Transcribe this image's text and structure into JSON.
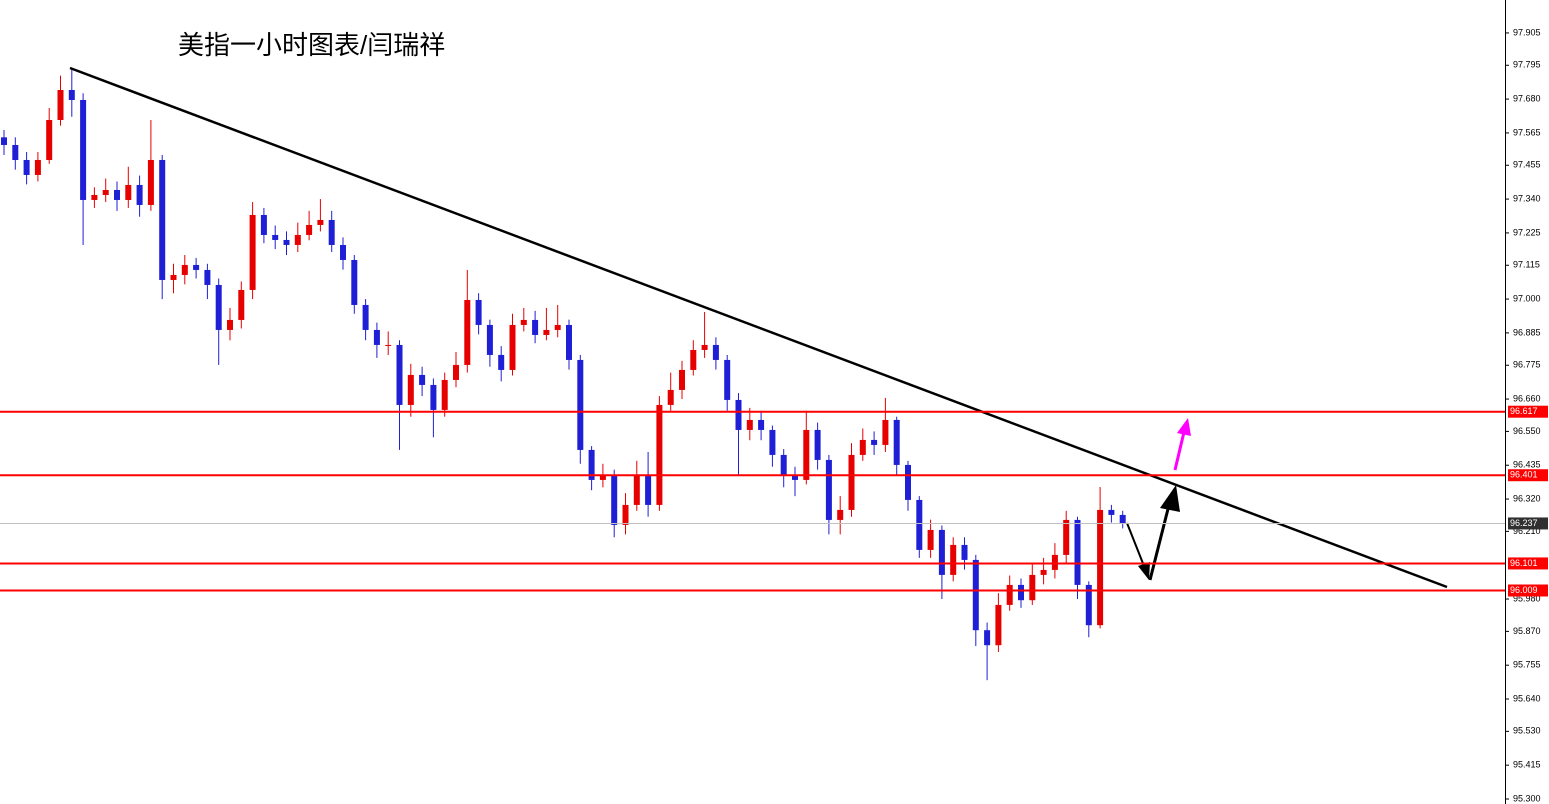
{
  "chart_data": {
    "type": "candlestick",
    "title": "美指一小时图表/闫瑞祥",
    "open": [
      97.55,
      97.524,
      97.473,
      97.422,
      97.473,
      97.609,
      97.711,
      97.677,
      97.337,
      97.354,
      97.371,
      97.337,
      97.388,
      97.32,
      97.473,
      97.065,
      97.082,
      97.116,
      97.099,
      97.048,
      96.895,
      96.929,
      97.031,
      97.286,
      97.218,
      97.201,
      97.184,
      97.218,
      97.252,
      97.269,
      97.184,
      97.133,
      96.98,
      96.895,
      96.844,
      96.844,
      96.64,
      96.742,
      96.708,
      96.623,
      96.725,
      96.776,
      96.997,
      96.912,
      96.81,
      96.759,
      96.912,
      96.929,
      96.878,
      96.895,
      96.912,
      96.793,
      96.487,
      96.385,
      96.402,
      96.232,
      96.3,
      96.402,
      96.3,
      96.64,
      96.691,
      96.759,
      96.827,
      96.844,
      96.793,
      96.657,
      96.555,
      96.589,
      96.555,
      96.47,
      96.402,
      96.385,
      96.555,
      96.453,
      96.249,
      96.283,
      96.47,
      96.521,
      96.504,
      96.589,
      96.436,
      96.317,
      96.147,
      96.215,
      96.062,
      96.164,
      96.113,
      95.874,
      95.823,
      95.96,
      96.028,
      95.976,
      96.062,
      96.079,
      96.13,
      96.249,
      96.028,
      95.891,
      96.283,
      96.266
    ],
    "high": [
      97.575,
      97.55,
      97.5,
      97.5,
      97.65,
      97.76,
      97.78,
      97.7,
      97.38,
      97.41,
      97.4,
      97.45,
      97.42,
      97.609,
      97.49,
      97.12,
      97.15,
      97.14,
      97.12,
      97.07,
      96.97,
      97.06,
      97.33,
      97.31,
      97.25,
      97.23,
      97.26,
      97.3,
      97.34,
      97.3,
      97.21,
      97.15,
      97.0,
      96.92,
      96.89,
      96.86,
      96.78,
      96.77,
      96.73,
      96.75,
      96.82,
      97.099,
      97.02,
      96.93,
      96.84,
      96.95,
      96.97,
      96.96,
      96.97,
      96.98,
      96.93,
      96.81,
      96.5,
      96.44,
      96.42,
      96.34,
      96.45,
      96.48,
      96.67,
      96.75,
      96.79,
      96.86,
      96.956,
      96.87,
      96.81,
      96.68,
      96.63,
      96.62,
      96.57,
      96.49,
      96.43,
      96.62,
      96.58,
      96.47,
      96.33,
      96.51,
      96.56,
      96.55,
      96.664,
      96.6,
      96.45,
      96.33,
      96.25,
      96.23,
      96.19,
      96.19,
      96.13,
      95.9,
      96.0,
      96.06,
      96.05,
      96.1,
      96.12,
      96.17,
      96.28,
      96.26,
      96.04,
      96.361,
      96.3,
      96.28
    ],
    "low": [
      97.49,
      97.44,
      97.39,
      97.4,
      97.46,
      97.59,
      97.62,
      97.184,
      97.31,
      97.33,
      97.3,
      97.31,
      97.28,
      97.3,
      97.0,
      97.02,
      97.05,
      97.07,
      97.0,
      96.776,
      96.86,
      96.9,
      97.0,
      97.19,
      97.17,
      97.15,
      97.16,
      97.2,
      97.23,
      97.16,
      97.1,
      96.95,
      96.86,
      96.8,
      96.81,
      96.487,
      96.6,
      96.67,
      96.53,
      96.6,
      96.7,
      96.75,
      96.88,
      96.77,
      96.72,
      96.74,
      96.89,
      96.85,
      96.86,
      96.87,
      96.76,
      96.44,
      96.35,
      96.36,
      96.19,
      96.2,
      96.28,
      96.26,
      96.28,
      96.62,
      96.66,
      96.74,
      96.8,
      96.76,
      96.62,
      96.4,
      96.52,
      96.52,
      96.43,
      96.36,
      96.33,
      96.37,
      96.42,
      96.2,
      96.2,
      96.26,
      96.45,
      96.47,
      96.48,
      96.4,
      96.28,
      96.12,
      96.12,
      95.98,
      96.04,
      96.08,
      95.82,
      95.704,
      95.8,
      95.94,
      95.95,
      95.96,
      96.03,
      96.05,
      96.1,
      95.98,
      95.85,
      95.88,
      96.24,
      96.22
    ],
    "close": [
      97.524,
      97.473,
      97.422,
      97.473,
      97.609,
      97.711,
      97.677,
      97.337,
      97.354,
      97.371,
      97.337,
      97.388,
      97.32,
      97.473,
      97.065,
      97.082,
      97.116,
      97.099,
      97.048,
      96.895,
      96.929,
      97.031,
      97.286,
      97.218,
      97.201,
      97.184,
      97.218,
      97.252,
      97.269,
      97.184,
      97.133,
      96.98,
      96.895,
      96.844,
      96.844,
      96.64,
      96.742,
      96.708,
      96.623,
      96.725,
      96.776,
      96.997,
      96.912,
      96.81,
      96.759,
      96.912,
      96.929,
      96.878,
      96.895,
      96.912,
      96.793,
      96.487,
      96.385,
      96.402,
      96.232,
      96.3,
      96.402,
      96.3,
      96.64,
      96.691,
      96.759,
      96.827,
      96.844,
      96.793,
      96.657,
      96.555,
      96.589,
      96.555,
      96.47,
      96.402,
      96.385,
      96.555,
      96.453,
      96.249,
      96.283,
      96.47,
      96.521,
      96.504,
      96.589,
      96.436,
      96.317,
      96.147,
      96.215,
      96.062,
      96.164,
      96.113,
      95.874,
      95.823,
      95.96,
      96.028,
      95.976,
      96.062,
      96.079,
      96.13,
      96.249,
      96.028,
      95.891,
      96.283,
      96.266,
      96.237
    ],
    "up_color": "#e60000",
    "down_color": "#1f1fd6",
    "ylim": [
      95.283,
      98.017
    ],
    "yticks": [
      97.905,
      97.795,
      {
        "value": 97.68,
        "label": "97.680"
      },
      97.565,
      97.455,
      {
        "value": 97.34,
        "label": "97.340"
      },
      97.225,
      97.115,
      {
        "value": 97,
        "label": "97.000"
      },
      96.885,
      96.775,
      {
        "value": 96.66,
        "label": "96.660"
      },
      {
        "value": 96.55,
        "label": "96.550"
      },
      96.435,
      {
        "value": 96.32,
        "label": "96.320"
      },
      {
        "value": 96.21,
        "label": "96.210"
      },
      {
        "value": 95.98,
        "label": "95.980"
      },
      {
        "value": 95.87,
        "label": "95.870"
      },
      95.755,
      {
        "value": 95.64,
        "label": "95.640"
      },
      {
        "value": 95.53,
        "label": "95.530"
      },
      95.415,
      {
        "value": 95.3,
        "label": "95.300"
      }
    ],
    "price_lines": [
      {
        "value": 96.617,
        "color": "#ff0000"
      },
      {
        "value": 96.401,
        "color": "#ff0000"
      },
      {
        "value": 96.101,
        "color": "#ff0000"
      },
      {
        "value": 96.009,
        "color": "#ff0000"
      },
      {
        "value": 96.237,
        "color": "#c0c0c0"
      }
    ]
  }
}
